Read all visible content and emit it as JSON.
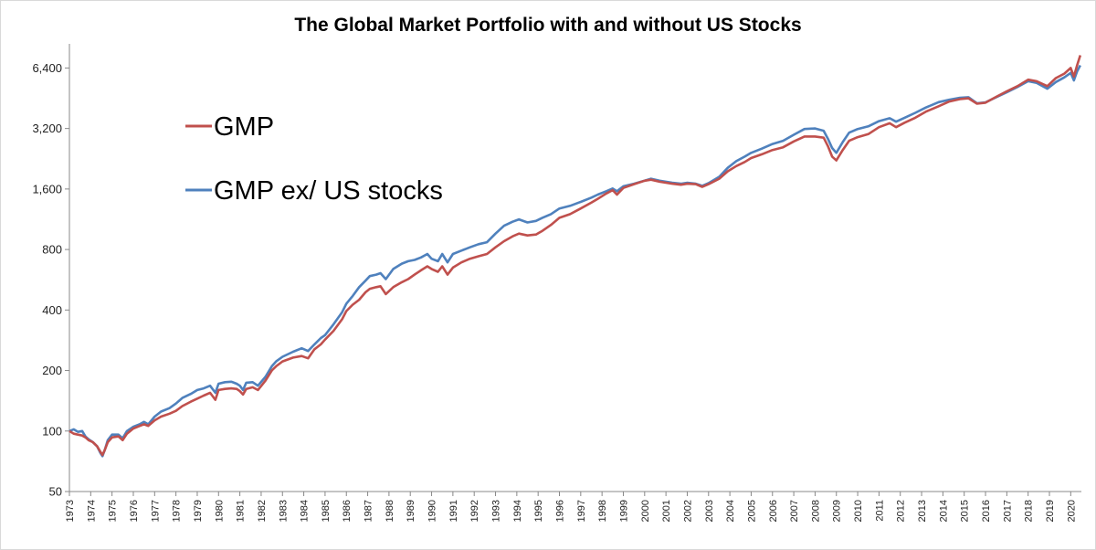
{
  "chart_data": {
    "type": "line",
    "title": "The Global Market Portfolio with and without US Stocks",
    "y_scale": "log",
    "ylim": [
      50,
      7600
    ],
    "xlim": [
      1973,
      2020.5
    ],
    "y_ticks": [
      50,
      100,
      200,
      400,
      800,
      1600,
      3200,
      6400
    ],
    "y_tick_labels": [
      "50",
      "100",
      "200",
      "400",
      "800",
      "1,600",
      "3,200",
      "6,400"
    ],
    "x_ticks": [
      1973,
      1974,
      1975,
      1976,
      1977,
      1978,
      1979,
      1980,
      1981,
      1982,
      1983,
      1984,
      1985,
      1986,
      1987,
      1988,
      1989,
      1990,
      1991,
      1992,
      1993,
      1994,
      1995,
      1996,
      1997,
      1998,
      1999,
      2000,
      2001,
      2002,
      2003,
      2004,
      2005,
      2006,
      2007,
      2008,
      2009,
      2010,
      2011,
      2012,
      2013,
      2014,
      2015,
      2016,
      2017,
      2018,
      2019,
      2020
    ],
    "legend_position": "upper-left",
    "grid": false,
    "series": [
      {
        "name": "GMP",
        "color": "#c0504d",
        "points": [
          [
            1973.0,
            100
          ],
          [
            1973.2,
            97
          ],
          [
            1973.4,
            96
          ],
          [
            1973.6,
            95
          ],
          [
            1973.75,
            93
          ],
          [
            1973.9,
            90
          ],
          [
            1974.1,
            88
          ],
          [
            1974.3,
            84
          ],
          [
            1974.45,
            79
          ],
          [
            1974.55,
            76
          ],
          [
            1974.65,
            80
          ],
          [
            1974.8,
            88
          ],
          [
            1975.0,
            93
          ],
          [
            1975.3,
            94
          ],
          [
            1975.5,
            90
          ],
          [
            1975.7,
            97
          ],
          [
            1976.0,
            103
          ],
          [
            1976.3,
            106
          ],
          [
            1976.5,
            108
          ],
          [
            1976.7,
            106
          ],
          [
            1977.0,
            113
          ],
          [
            1977.3,
            118
          ],
          [
            1977.7,
            122
          ],
          [
            1978.0,
            126
          ],
          [
            1978.3,
            133
          ],
          [
            1978.7,
            140
          ],
          [
            1979.0,
            145
          ],
          [
            1979.3,
            150
          ],
          [
            1979.6,
            155
          ],
          [
            1979.85,
            143
          ],
          [
            1980.0,
            160
          ],
          [
            1980.3,
            162
          ],
          [
            1980.6,
            163
          ],
          [
            1980.85,
            162
          ],
          [
            1981.0,
            158
          ],
          [
            1981.15,
            152
          ],
          [
            1981.3,
            162
          ],
          [
            1981.6,
            165
          ],
          [
            1981.85,
            160
          ],
          [
            1982.2,
            178
          ],
          [
            1982.5,
            200
          ],
          [
            1982.7,
            210
          ],
          [
            1983.0,
            222
          ],
          [
            1983.5,
            232
          ],
          [
            1983.9,
            236
          ],
          [
            1984.2,
            230
          ],
          [
            1984.5,
            255
          ],
          [
            1984.8,
            270
          ],
          [
            1985.0,
            285
          ],
          [
            1985.4,
            315
          ],
          [
            1985.8,
            360
          ],
          [
            1986.0,
            395
          ],
          [
            1986.3,
            425
          ],
          [
            1986.6,
            450
          ],
          [
            1986.9,
            490
          ],
          [
            1987.1,
            510
          ],
          [
            1987.4,
            520
          ],
          [
            1987.6,
            525
          ],
          [
            1987.85,
            480
          ],
          [
            1988.2,
            520
          ],
          [
            1988.6,
            550
          ],
          [
            1988.9,
            570
          ],
          [
            1989.2,
            600
          ],
          [
            1989.5,
            630
          ],
          [
            1989.8,
            660
          ],
          [
            1990.0,
            640
          ],
          [
            1990.3,
            620
          ],
          [
            1990.5,
            660
          ],
          [
            1990.75,
            600
          ],
          [
            1991.0,
            650
          ],
          [
            1991.4,
            690
          ],
          [
            1991.8,
            720
          ],
          [
            1992.2,
            740
          ],
          [
            1992.6,
            760
          ],
          [
            1993.0,
            820
          ],
          [
            1993.4,
            880
          ],
          [
            1993.8,
            930
          ],
          [
            1994.1,
            960
          ],
          [
            1994.5,
            940
          ],
          [
            1994.9,
            950
          ],
          [
            1995.2,
            990
          ],
          [
            1995.6,
            1060
          ],
          [
            1996.0,
            1150
          ],
          [
            1996.5,
            1200
          ],
          [
            1997.0,
            1280
          ],
          [
            1997.5,
            1370
          ],
          [
            1997.8,
            1430
          ],
          [
            1998.2,
            1520
          ],
          [
            1998.5,
            1580
          ],
          [
            1998.7,
            1500
          ],
          [
            1999.0,
            1620
          ],
          [
            1999.5,
            1690
          ],
          [
            2000.0,
            1760
          ],
          [
            2000.3,
            1780
          ],
          [
            2000.7,
            1740
          ],
          [
            2001.0,
            1720
          ],
          [
            2001.3,
            1700
          ],
          [
            2001.7,
            1680
          ],
          [
            2002.0,
            1700
          ],
          [
            2002.4,
            1690
          ],
          [
            2002.7,
            1640
          ],
          [
            2003.0,
            1690
          ],
          [
            2003.5,
            1800
          ],
          [
            2003.9,
            1960
          ],
          [
            2004.3,
            2080
          ],
          [
            2004.7,
            2180
          ],
          [
            2005.0,
            2280
          ],
          [
            2005.5,
            2380
          ],
          [
            2006.0,
            2500
          ],
          [
            2006.5,
            2580
          ],
          [
            2007.0,
            2760
          ],
          [
            2007.5,
            2920
          ],
          [
            2008.0,
            2920
          ],
          [
            2008.4,
            2880
          ],
          [
            2008.6,
            2620
          ],
          [
            2008.8,
            2320
          ],
          [
            2009.0,
            2220
          ],
          [
            2009.3,
            2500
          ],
          [
            2009.6,
            2780
          ],
          [
            2010.0,
            2900
          ],
          [
            2010.5,
            3000
          ],
          [
            2011.0,
            3250
          ],
          [
            2011.5,
            3400
          ],
          [
            2011.8,
            3250
          ],
          [
            2012.2,
            3420
          ],
          [
            2012.7,
            3620
          ],
          [
            2013.2,
            3880
          ],
          [
            2013.8,
            4130
          ],
          [
            2014.3,
            4360
          ],
          [
            2014.8,
            4480
          ],
          [
            2015.2,
            4520
          ],
          [
            2015.6,
            4250
          ],
          [
            2016.0,
            4300
          ],
          [
            2016.5,
            4600
          ],
          [
            2017.0,
            4900
          ],
          [
            2017.5,
            5200
          ],
          [
            2018.0,
            5600
          ],
          [
            2018.4,
            5500
          ],
          [
            2018.9,
            5200
          ],
          [
            2019.3,
            5700
          ],
          [
            2019.7,
            6000
          ],
          [
            2020.0,
            6400
          ],
          [
            2020.15,
            5800
          ],
          [
            2020.3,
            6600
          ],
          [
            2020.45,
            7400
          ]
        ]
      },
      {
        "name": "GMP ex/ US stocks",
        "color": "#4f81bd",
        "points": [
          [
            1973.0,
            100
          ],
          [
            1973.2,
            102
          ],
          [
            1973.4,
            99
          ],
          [
            1973.6,
            100
          ],
          [
            1973.75,
            94
          ],
          [
            1973.9,
            91
          ],
          [
            1974.1,
            88
          ],
          [
            1974.3,
            84
          ],
          [
            1974.45,
            78
          ],
          [
            1974.55,
            75
          ],
          [
            1974.65,
            80
          ],
          [
            1974.8,
            90
          ],
          [
            1975.0,
            96
          ],
          [
            1975.3,
            96
          ],
          [
            1975.5,
            92
          ],
          [
            1975.7,
            100
          ],
          [
            1976.0,
            105
          ],
          [
            1976.3,
            108
          ],
          [
            1976.5,
            111
          ],
          [
            1976.7,
            108
          ],
          [
            1977.0,
            118
          ],
          [
            1977.3,
            125
          ],
          [
            1977.7,
            130
          ],
          [
            1978.0,
            137
          ],
          [
            1978.3,
            146
          ],
          [
            1978.7,
            153
          ],
          [
            1979.0,
            160
          ],
          [
            1979.3,
            163
          ],
          [
            1979.6,
            168
          ],
          [
            1979.85,
            155
          ],
          [
            1980.0,
            172
          ],
          [
            1980.3,
            175
          ],
          [
            1980.6,
            176
          ],
          [
            1980.85,
            172
          ],
          [
            1981.0,
            168
          ],
          [
            1981.15,
            160
          ],
          [
            1981.3,
            174
          ],
          [
            1981.6,
            175
          ],
          [
            1981.85,
            168
          ],
          [
            1982.2,
            186
          ],
          [
            1982.5,
            210
          ],
          [
            1982.7,
            222
          ],
          [
            1983.0,
            234
          ],
          [
            1983.5,
            248
          ],
          [
            1983.9,
            258
          ],
          [
            1984.2,
            250
          ],
          [
            1984.5,
            270
          ],
          [
            1984.8,
            290
          ],
          [
            1985.0,
            300
          ],
          [
            1985.4,
            340
          ],
          [
            1985.8,
            390
          ],
          [
            1986.0,
            430
          ],
          [
            1986.3,
            470
          ],
          [
            1986.6,
            520
          ],
          [
            1986.9,
            560
          ],
          [
            1987.1,
            590
          ],
          [
            1987.4,
            600
          ],
          [
            1987.6,
            610
          ],
          [
            1987.85,
            570
          ],
          [
            1988.2,
            640
          ],
          [
            1988.6,
            680
          ],
          [
            1988.9,
            700
          ],
          [
            1989.2,
            710
          ],
          [
            1989.5,
            730
          ],
          [
            1989.8,
            760
          ],
          [
            1990.0,
            720
          ],
          [
            1990.3,
            700
          ],
          [
            1990.5,
            760
          ],
          [
            1990.75,
            690
          ],
          [
            1991.0,
            760
          ],
          [
            1991.4,
            790
          ],
          [
            1991.8,
            820
          ],
          [
            1992.2,
            850
          ],
          [
            1992.6,
            870
          ],
          [
            1993.0,
            960
          ],
          [
            1993.4,
            1050
          ],
          [
            1993.8,
            1100
          ],
          [
            1994.1,
            1130
          ],
          [
            1994.5,
            1090
          ],
          [
            1994.9,
            1110
          ],
          [
            1995.2,
            1150
          ],
          [
            1995.6,
            1200
          ],
          [
            1996.0,
            1280
          ],
          [
            1996.5,
            1320
          ],
          [
            1997.0,
            1380
          ],
          [
            1997.5,
            1450
          ],
          [
            1997.8,
            1500
          ],
          [
            1998.2,
            1560
          ],
          [
            1998.5,
            1610
          ],
          [
            1998.7,
            1560
          ],
          [
            1999.0,
            1650
          ],
          [
            1999.5,
            1700
          ],
          [
            2000.0,
            1760
          ],
          [
            2000.3,
            1800
          ],
          [
            2000.7,
            1760
          ],
          [
            2001.0,
            1740
          ],
          [
            2001.3,
            1720
          ],
          [
            2001.7,
            1700
          ],
          [
            2002.0,
            1720
          ],
          [
            2002.4,
            1700
          ],
          [
            2002.7,
            1660
          ],
          [
            2003.0,
            1710
          ],
          [
            2003.5,
            1840
          ],
          [
            2003.9,
            2040
          ],
          [
            2004.3,
            2200
          ],
          [
            2004.7,
            2320
          ],
          [
            2005.0,
            2420
          ],
          [
            2005.5,
            2540
          ],
          [
            2006.0,
            2680
          ],
          [
            2006.5,
            2780
          ],
          [
            2007.0,
            2980
          ],
          [
            2007.5,
            3180
          ],
          [
            2008.0,
            3200
          ],
          [
            2008.4,
            3120
          ],
          [
            2008.6,
            2850
          ],
          [
            2008.8,
            2560
          ],
          [
            2009.0,
            2420
          ],
          [
            2009.3,
            2740
          ],
          [
            2009.6,
            3050
          ],
          [
            2010.0,
            3180
          ],
          [
            2010.5,
            3280
          ],
          [
            2011.0,
            3480
          ],
          [
            2011.5,
            3600
          ],
          [
            2011.8,
            3460
          ],
          [
            2012.2,
            3620
          ],
          [
            2012.7,
            3830
          ],
          [
            2013.2,
            4070
          ],
          [
            2013.8,
            4330
          ],
          [
            2014.3,
            4450
          ],
          [
            2014.8,
            4550
          ],
          [
            2015.2,
            4580
          ],
          [
            2015.6,
            4270
          ],
          [
            2016.0,
            4320
          ],
          [
            2016.5,
            4580
          ],
          [
            2017.0,
            4850
          ],
          [
            2017.5,
            5150
          ],
          [
            2018.0,
            5500
          ],
          [
            2018.4,
            5400
          ],
          [
            2018.9,
            5050
          ],
          [
            2019.3,
            5450
          ],
          [
            2019.7,
            5750
          ],
          [
            2020.0,
            6050
          ],
          [
            2020.15,
            5550
          ],
          [
            2020.3,
            6150
          ],
          [
            2020.45,
            6600
          ]
        ]
      }
    ]
  }
}
